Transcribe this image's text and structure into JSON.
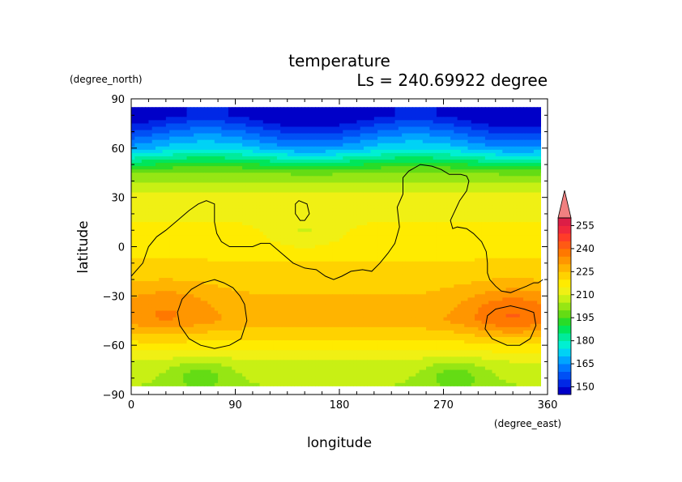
{
  "chart_data": {
    "type": "heatmap",
    "title": "temperature",
    "subtitle": "Ls = 240.69922 degree",
    "xlabel": "longitude",
    "ylabel": "latitude",
    "x_units": "(degree_east)",
    "y_units": "(degree_north)",
    "xlim": [
      0,
      360
    ],
    "ylim": [
      -90,
      90
    ],
    "data_lat_range": [
      -85,
      85
    ],
    "x_ticks": [
      0,
      90,
      180,
      270,
      360
    ],
    "x_tick_labels": [
      "0",
      "90",
      "180",
      "270",
      "360"
    ],
    "y_ticks": [
      -90,
      -60,
      -30,
      0,
      30,
      60,
      90
    ],
    "y_tick_labels": [
      "−90",
      "−60",
      "−30",
      "0",
      "30",
      "60",
      "90"
    ],
    "colorbar": {
      "levels": [
        145,
        150,
        155,
        160,
        165,
        170,
        175,
        180,
        185,
        190,
        195,
        200,
        205,
        210,
        215,
        220,
        225,
        230,
        235,
        240,
        245,
        250,
        255,
        260
      ],
      "labels": [
        "150",
        "165",
        "180",
        "195",
        "210",
        "225",
        "240",
        "255"
      ],
      "label_values": [
        150,
        165,
        180,
        195,
        210,
        225,
        240,
        255
      ],
      "colors": [
        "#0000c8",
        "#0028e6",
        "#0050f5",
        "#0078ff",
        "#00a5ff",
        "#00d2f5",
        "#00f0d2",
        "#00eb9b",
        "#00e65a",
        "#28dc28",
        "#64dc14",
        "#96e614",
        "#c8f014",
        "#f0f014",
        "#ffeb00",
        "#ffd200",
        "#ffb400",
        "#ff9600",
        "#ff7800",
        "#ff5a14",
        "#ff3c28",
        "#f0283c",
        "#dc1e46"
      ],
      "extend_max_color": "#f08080"
    },
    "field_description_points": [
      {
        "lat": 80,
        "temp": 146
      },
      {
        "lat": 60,
        "temp": 170
      },
      {
        "lat": 45,
        "temp": 200
      },
      {
        "lat": 30,
        "temp": 212
      },
      {
        "lat": 0,
        "temp": 218
      },
      {
        "lat": -30,
        "temp": 225
      },
      {
        "lat": -45,
        "temp": 228
      },
      {
        "lat": -70,
        "temp": 210
      },
      {
        "lat": -85,
        "temp": 205
      }
    ],
    "warm_spots": [
      {
        "lon": 30,
        "lat": -38,
        "temp": 235
      },
      {
        "lon": 330,
        "lat": -40,
        "temp": 240
      }
    ],
    "cool_spots": [
      {
        "lon": 60,
        "lat": -78,
        "temp": 198
      },
      {
        "lon": 280,
        "lat": -78,
        "temp": 198
      },
      {
        "lon": 150,
        "lat": 8,
        "temp": 210
      }
    ],
    "topography_contour": {
      "main": [
        [
          0,
          -18
        ],
        [
          10,
          -10
        ],
        [
          15,
          0
        ],
        [
          22,
          6
        ],
        [
          30,
          10
        ],
        [
          40,
          16
        ],
        [
          50,
          22
        ],
        [
          58,
          26
        ],
        [
          65,
          28
        ],
        [
          72,
          26
        ],
        [
          72,
          15
        ],
        [
          74,
          8
        ],
        [
          78,
          3
        ],
        [
          85,
          0
        ],
        [
          95,
          0
        ],
        [
          105,
          0
        ],
        [
          112,
          2
        ],
        [
          120,
          2
        ],
        [
          130,
          -4
        ],
        [
          140,
          -10
        ],
        [
          150,
          -13
        ],
        [
          160,
          -14
        ],
        [
          168,
          -18
        ],
        [
          175,
          -20
        ],
        [
          182,
          -18
        ],
        [
          190,
          -15
        ],
        [
          200,
          -14
        ],
        [
          208,
          -15
        ],
        [
          215,
          -10
        ],
        [
          222,
          -4
        ],
        [
          228,
          2
        ],
        [
          232,
          12
        ],
        [
          230,
          24
        ],
        [
          235,
          32
        ],
        [
          235,
          42
        ],
        [
          240,
          46
        ],
        [
          250,
          50
        ],
        [
          260,
          49
        ],
        [
          268,
          47
        ],
        [
          275,
          44
        ],
        [
          285,
          44
        ],
        [
          290,
          43
        ],
        [
          292,
          40
        ],
        [
          290,
          34
        ],
        [
          284,
          28
        ],
        [
          280,
          22
        ],
        [
          276,
          16
        ],
        [
          278,
          11
        ],
        [
          282,
          12
        ],
        [
          290,
          11
        ],
        [
          296,
          8
        ],
        [
          303,
          3
        ],
        [
          307,
          -3
        ],
        [
          308,
          -10
        ],
        [
          308,
          -16
        ],
        [
          310,
          -20
        ],
        [
          315,
          -24
        ],
        [
          320,
          -27
        ],
        [
          328,
          -28
        ],
        [
          335,
          -26
        ],
        [
          342,
          -24
        ],
        [
          348,
          -22
        ],
        [
          352,
          -22
        ],
        [
          356,
          -20
        ]
      ],
      "rings": [
        [
          [
            72,
            -20
          ],
          [
            80,
            -22
          ],
          [
            88,
            -25
          ],
          [
            94,
            -30
          ],
          [
            98,
            -35
          ],
          [
            100,
            -45
          ],
          [
            95,
            -56
          ],
          [
            85,
            -60
          ],
          [
            72,
            -62
          ],
          [
            60,
            -60
          ],
          [
            50,
            -56
          ],
          [
            42,
            -48
          ],
          [
            40,
            -40
          ],
          [
            44,
            -32
          ],
          [
            52,
            -26
          ],
          [
            62,
            -22
          ],
          [
            72,
            -20
          ]
        ],
        [
          [
            340,
            -38
          ],
          [
            348,
            -40
          ],
          [
            350,
            -48
          ],
          [
            345,
            -56
          ],
          [
            336,
            -60
          ],
          [
            325,
            -60
          ],
          [
            312,
            -56
          ],
          [
            306,
            -50
          ],
          [
            308,
            -42
          ],
          [
            315,
            -38
          ],
          [
            328,
            -36
          ],
          [
            340,
            -38
          ]
        ],
        [
          [
            145,
            28
          ],
          [
            152,
            26
          ],
          [
            154,
            20
          ],
          [
            150,
            16
          ],
          [
            146,
            16
          ],
          [
            142,
            20
          ],
          [
            142,
            26
          ],
          [
            145,
            28
          ]
        ]
      ]
    }
  }
}
